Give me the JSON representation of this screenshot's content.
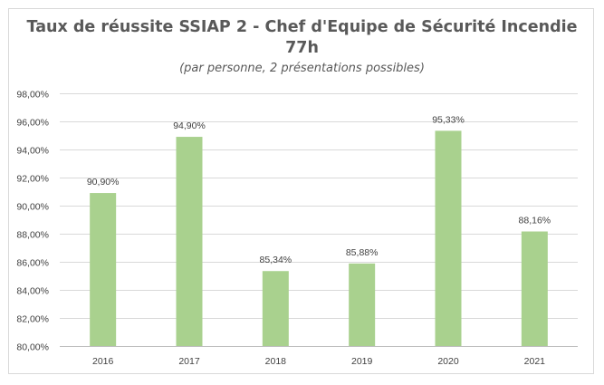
{
  "chart_data": {
    "type": "bar",
    "title_line1": "Taux de réussite SSIAP 2 - Chef d'Equipe de Sécurité Incendie",
    "title_line2": "77h",
    "subtitle": "(par personne, 2 présentations possibles)",
    "categories": [
      "2016",
      "2017",
      "2018",
      "2019",
      "2020",
      "2021"
    ],
    "values": [
      90.9,
      94.9,
      85.34,
      85.88,
      95.33,
      88.16
    ],
    "data_labels": [
      "90,90%",
      "94,90%",
      "85,34%",
      "85,88%",
      "95,33%",
      "88,16%"
    ],
    "ylim": [
      80,
      98
    ],
    "yticks": [
      80,
      82,
      84,
      86,
      88,
      90,
      92,
      94,
      96,
      98
    ],
    "ytick_labels": [
      "80,00%",
      "82,00%",
      "84,00%",
      "86,00%",
      "88,00%",
      "90,00%",
      "92,00%",
      "94,00%",
      "96,00%",
      "98,00%"
    ],
    "grid": true,
    "legend": "none",
    "bar_color": "#a9d18e",
    "grid_color": "#d9d9d9"
  }
}
